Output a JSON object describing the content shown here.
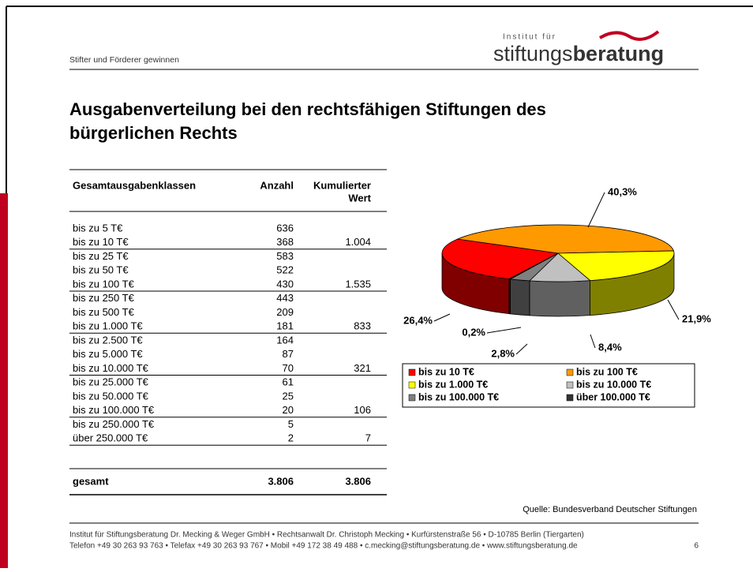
{
  "header": {
    "subtitle": "Stifter und Förderer gewinnen",
    "logo_small": "Institut für",
    "logo_a": "stiftungs",
    "logo_b": "beratung"
  },
  "title": [
    "Ausgabenverteilung bei den rechtsfähigen Stiftungen des",
    "bürgerlichen Rechts"
  ],
  "table": {
    "columns": [
      "Gesamtausgabenklassen",
      "Anzahl",
      [
        "Kumulierter",
        "Wert"
      ]
    ],
    "groups": [
      {
        "rows": [
          [
            "bis zu 5 T€",
            "636"
          ],
          [
            "bis zu 10 T€",
            "368"
          ]
        ],
        "sum": "1.004"
      },
      {
        "rows": [
          [
            "bis zu 25 T€",
            "583"
          ],
          [
            "bis zu 50 T€",
            "522"
          ],
          [
            "bis zu 100 T€",
            "430"
          ]
        ],
        "sum": "1.535"
      },
      {
        "rows": [
          [
            "bis zu 250 T€",
            "443"
          ],
          [
            "bis zu 500 T€",
            "209"
          ],
          [
            "bis zu 1.000 T€",
            "181"
          ]
        ],
        "sum": "833"
      },
      {
        "rows": [
          [
            "bis zu 2.500 T€",
            "164"
          ],
          [
            "bis zu 5.000 T€",
            "87"
          ],
          [
            "bis zu 10.000 T€",
            "70"
          ]
        ],
        "sum": "321"
      },
      {
        "rows": [
          [
            "bis zu 25.000 T€",
            "61"
          ],
          [
            "bis zu 50.000 T€",
            "25"
          ],
          [
            "bis zu 100.000 T€",
            "20"
          ]
        ],
        "sum": "106"
      },
      {
        "rows": [
          [
            "bis zu 250.000 T€",
            "5"
          ],
          [
            "über 250.000 T€",
            "2"
          ]
        ],
        "sum": "7"
      }
    ],
    "total": [
      "gesamt",
      "3.806",
      "3.806"
    ]
  },
  "chart_data": {
    "type": "pie3d",
    "categories": [
      "bis zu 10 T€",
      "bis zu 100 T€",
      "bis zu 1.000 T€",
      "bis zu 10.000 T€",
      "bis zu 100.000 T€",
      "über 100.000 T€"
    ],
    "values": [
      26.4,
      40.3,
      21.9,
      8.4,
      2.8,
      0.2
    ],
    "value_labels": [
      "26,4%",
      "40,3%",
      "21,9%",
      "8,4%",
      "2,8%",
      "0,2%"
    ],
    "colors": [
      "#ff0000",
      "#ff9900",
      "#ffff00",
      "#c0c0c0",
      "#808080",
      "#333333"
    ]
  },
  "source": "Quelle: Bundesverband Deutscher Stiftungen",
  "footer": {
    "line1": "Institut für Stiftungsberatung Dr. Mecking & Weger GmbH • Rechtsanwalt Dr. Christoph Mecking • Kurfürstenstraße 56 • D-10785 Berlin (Tiergarten)",
    "line2": "Telefon +49 30 263 93 763 • Telefax +49 30 263 93 767 • Mobil +49 172 38 49 488 • c.mecking@stiftungsberatung.de • www.stiftungsberatung.de",
    "page": "6"
  }
}
